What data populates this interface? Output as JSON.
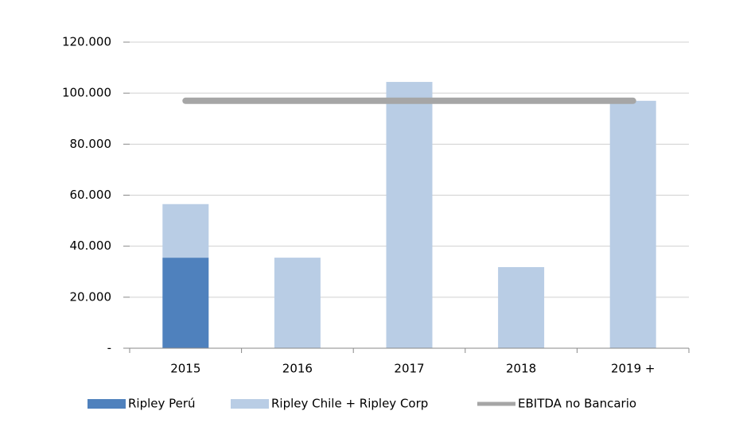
{
  "chart_data": {
    "type": "bar",
    "categories": [
      "2015",
      "2016",
      "2017",
      "2018",
      "2019 +"
    ],
    "series": [
      {
        "name": "Ripley Perú",
        "type": "bar",
        "color": "#4f81bd",
        "values": [
          35500,
          null,
          null,
          null,
          null
        ]
      },
      {
        "name": "Ripley Chile + Ripley Corp",
        "type": "bar",
        "color": "#b9cde5",
        "values": [
          21000,
          35500,
          104400,
          31800,
          97000
        ]
      },
      {
        "name": "EBITDA no Bancario",
        "type": "line",
        "color": "#a6a6a6",
        "values": [
          97000,
          97000,
          97000,
          97000,
          97000
        ]
      }
    ],
    "stacked": true,
    "ylim": [
      0,
      120000
    ],
    "yticks": [
      {
        "value": 0,
        "label": "-"
      },
      {
        "value": 20000,
        "label": "20.000"
      },
      {
        "value": 40000,
        "label": "40.000"
      },
      {
        "value": 60000,
        "label": "60.000"
      },
      {
        "value": 80000,
        "label": "80.000"
      },
      {
        "value": 100000,
        "label": "100.000"
      },
      {
        "value": 120000,
        "label": "120.000"
      }
    ],
    "grid": true,
    "legend": "bottom"
  }
}
